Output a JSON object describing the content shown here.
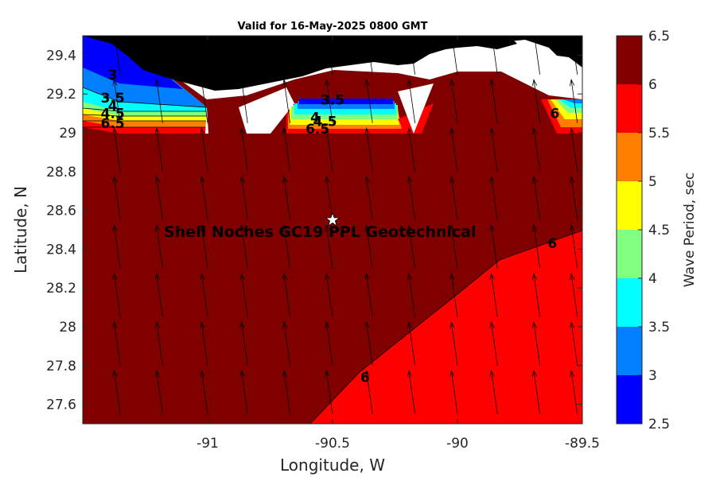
{
  "chart_data": {
    "type": "heatmap",
    "title": "Valid for 16-May-2025 0800 GMT",
    "xlabel": "Longitude, W",
    "ylabel": "Latitude, N",
    "xlim": [
      -91.5,
      -89.5
    ],
    "ylim": [
      27.5,
      29.5
    ],
    "x_ticks": [
      -91,
      -90.5,
      -90,
      -89.5
    ],
    "x_tick_labels": [
      "-91",
      "-90.5",
      "-90",
      "-89.5"
    ],
    "y_ticks": [
      27.6,
      27.8,
      28,
      28.2,
      28.4,
      28.6,
      28.8,
      29,
      29.2,
      29.4
    ],
    "y_tick_labels": [
      "27.6",
      "27.8",
      "28",
      "28.2",
      "28.4",
      "28.6",
      "28.8",
      "29",
      "29.2",
      "29.4"
    ],
    "colorbar": {
      "label": "Wave Period, sec",
      "levels": [
        2.5,
        3,
        3.5,
        4,
        4.5,
        5,
        5.5,
        6,
        6.5
      ],
      "tick_labels": [
        "2.5",
        "3",
        "3.5",
        "4",
        "4.5",
        "5",
        "5.5",
        "6",
        "6.5"
      ],
      "colors": [
        "#0000ff",
        "#0080ff",
        "#00ffff",
        "#80ff80",
        "#ffff00",
        "#ff8000",
        "#ff0000",
        "#800000"
      ]
    },
    "regions": [
      {
        "value_range": [
          6,
          6.5
        ],
        "color": "#800000",
        "description": "offshore majority"
      },
      {
        "value_range": [
          5.5,
          6
        ],
        "color": "#ff0000",
        "description": "southeast corner"
      }
    ],
    "contour_labels": [
      {
        "text": "6",
        "lon": -90.37,
        "lat": 27.74
      },
      {
        "text": "6",
        "lon": -89.62,
        "lat": 28.43
      },
      {
        "text": "6",
        "lon": -89.61,
        "lat": 29.1
      },
      {
        "text": "3",
        "lon": -91.38,
        "lat": 29.3
      },
      {
        "text": "3.5",
        "lon": -91.38,
        "lat": 29.18
      },
      {
        "text": "4",
        "lon": -91.38,
        "lat": 29.14
      },
      {
        "text": "4.5",
        "lon": -91.38,
        "lat": 29.1
      },
      {
        "text": "6.5",
        "lon": -91.38,
        "lat": 29.05
      },
      {
        "text": "3.5",
        "lon": -90.5,
        "lat": 29.17
      },
      {
        "text": "4",
        "lon": -90.57,
        "lat": 29.08
      },
      {
        "text": "4.5",
        "lon": -90.53,
        "lat": 29.06
      },
      {
        "text": "6.5",
        "lon": -90.56,
        "lat": 29.02
      }
    ],
    "site": {
      "name": "Shell Noches  GC19 PPL  Geotechnical",
      "lon": -90.5,
      "lat": 28.55,
      "marker": "star"
    },
    "vector_field": {
      "description": "wave direction arrows pointing north-northwest",
      "direction_deg": -8
    },
    "land_color": "#000000",
    "grid": false
  }
}
